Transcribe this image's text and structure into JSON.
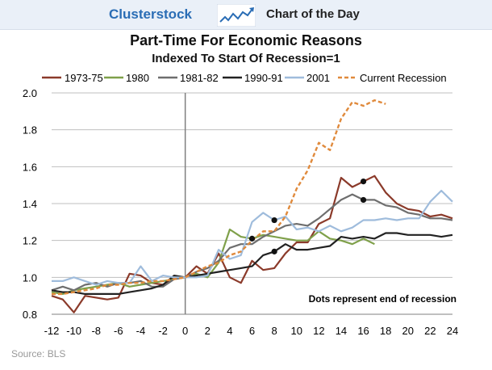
{
  "header": {
    "brand": "Clusterstock",
    "section": "Chart of the Day",
    "logo_icon": "rising-line-chart-icon"
  },
  "source": "Source: BLS",
  "colors": {
    "brand": "#2a6db5",
    "1973-75": "#8b3a2a",
    "1980": "#7fa04a",
    "1981-82": "#6e6e6e",
    "1990-91": "#222222",
    "2001": "#9fbcdc",
    "Current Recession": "#e08a3c"
  },
  "chart_data": {
    "type": "line",
    "title": "Part-Time For Economic Reasons",
    "subtitle": "Indexed To Start Of Recession=1",
    "xlabel": "",
    "ylabel": "",
    "xlim": [
      -12,
      24
    ],
    "ylim": [
      0.8,
      2.0
    ],
    "xticks": [
      "-12",
      "-10",
      "-8",
      "-6",
      "-4",
      "-2",
      "0",
      "2",
      "4",
      "6",
      "8",
      "10",
      "12",
      "14",
      "16",
      "18",
      "20",
      "22",
      "24"
    ],
    "yticks": [
      "0.8",
      "1.0",
      "1.2",
      "1.4",
      "1.6",
      "1.8",
      "2.0"
    ],
    "grid": "horizontal",
    "legend": "top",
    "vline_x": 0,
    "annotation": "Dots represent end of recession",
    "series": [
      {
        "name": "1973-75",
        "style": "solid",
        "x": [
          -12,
          -11,
          -10,
          -9,
          -8,
          -7,
          -6,
          -5,
          -4,
          -3,
          -2,
          -1,
          0,
          1,
          2,
          3,
          4,
          5,
          6,
          7,
          8,
          9,
          10,
          11,
          12,
          13,
          14,
          15,
          16,
          17,
          18,
          19,
          20,
          21,
          22,
          23,
          24
        ],
        "y": [
          0.9,
          0.88,
          0.81,
          0.9,
          0.89,
          0.88,
          0.89,
          1.02,
          1.01,
          0.97,
          0.96,
          1.0,
          1.0,
          1.06,
          1.02,
          1.13,
          1.0,
          0.97,
          1.09,
          1.04,
          1.05,
          1.13,
          1.19,
          1.19,
          1.29,
          1.32,
          1.54,
          1.49,
          1.52,
          1.55,
          1.46,
          1.4,
          1.37,
          1.36,
          1.33,
          1.34,
          1.32
        ],
        "end_x": 16
      },
      {
        "name": "1980",
        "style": "solid",
        "x": [
          -12,
          -11,
          -10,
          -9,
          -8,
          -7,
          -6,
          -5,
          -4,
          -3,
          -2,
          -1,
          0,
          1,
          2,
          3,
          4,
          5,
          6,
          7,
          8,
          9,
          10,
          11,
          12,
          13,
          14,
          15,
          16,
          17
        ],
        "y": [
          0.92,
          0.91,
          0.93,
          0.94,
          0.95,
          0.96,
          0.97,
          0.95,
          0.96,
          0.97,
          0.98,
          0.99,
          1.0,
          1.02,
          1.0,
          1.08,
          1.26,
          1.22,
          1.21,
          1.23,
          1.22,
          1.21,
          1.2,
          1.2,
          1.25,
          1.21,
          1.2,
          1.18,
          1.21,
          1.18
        ],
        "end_x": 6
      },
      {
        "name": "1981-82",
        "style": "solid",
        "x": [
          -12,
          -11,
          -10,
          -9,
          -8,
          -7,
          -6,
          -5,
          -4,
          -3,
          -2,
          -1,
          0,
          1,
          2,
          3,
          4,
          5,
          6,
          7,
          8,
          9,
          10,
          11,
          12,
          13,
          14,
          15,
          16,
          17,
          18,
          19,
          20,
          21,
          22,
          23,
          24
        ],
        "y": [
          0.93,
          0.95,
          0.93,
          0.96,
          0.97,
          0.95,
          0.97,
          0.97,
          0.98,
          0.95,
          0.95,
          0.99,
          1.0,
          1.03,
          1.05,
          1.09,
          1.16,
          1.18,
          1.18,
          1.22,
          1.25,
          1.28,
          1.29,
          1.28,
          1.32,
          1.37,
          1.42,
          1.45,
          1.42,
          1.42,
          1.39,
          1.38,
          1.35,
          1.34,
          1.32,
          1.32,
          1.31
        ],
        "end_x": 16
      },
      {
        "name": "1990-91",
        "style": "solid",
        "x": [
          -12,
          -11,
          -10,
          -9,
          -8,
          -7,
          -6,
          -5,
          -4,
          -3,
          -2,
          -1,
          0,
          1,
          2,
          3,
          4,
          5,
          6,
          7,
          8,
          9,
          10,
          11,
          12,
          13,
          14,
          15,
          16,
          17,
          18,
          19,
          20,
          21,
          22,
          23,
          24
        ],
        "y": [
          0.93,
          0.92,
          0.92,
          0.91,
          0.91,
          0.91,
          0.91,
          0.92,
          0.93,
          0.94,
          0.96,
          1.01,
          1.0,
          1.01,
          1.02,
          1.03,
          1.04,
          1.05,
          1.06,
          1.12,
          1.14,
          1.18,
          1.15,
          1.15,
          1.16,
          1.17,
          1.22,
          1.21,
          1.22,
          1.21,
          1.24,
          1.24,
          1.23,
          1.23,
          1.23,
          1.22,
          1.23
        ],
        "end_x": 8
      },
      {
        "name": "2001",
        "style": "solid",
        "x": [
          -12,
          -11,
          -10,
          -9,
          -8,
          -7,
          -6,
          -5,
          -4,
          -3,
          -2,
          -1,
          0,
          1,
          2,
          3,
          4,
          5,
          6,
          7,
          8,
          9,
          10,
          11,
          12,
          13,
          14,
          15,
          16,
          17,
          18,
          19,
          20,
          21,
          22,
          23,
          24
        ],
        "y": [
          0.98,
          0.98,
          1.0,
          0.98,
          0.96,
          0.98,
          0.97,
          0.97,
          1.06,
          0.98,
          1.01,
          1.0,
          1.0,
          1.0,
          1.01,
          1.15,
          1.1,
          1.12,
          1.3,
          1.35,
          1.31,
          1.33,
          1.26,
          1.27,
          1.25,
          1.28,
          1.25,
          1.27,
          1.31,
          1.31,
          1.32,
          1.31,
          1.32,
          1.32,
          1.41,
          1.47,
          1.41
        ],
        "end_x": 8
      },
      {
        "name": "Current Recession",
        "style": "dashed",
        "x": [
          -12,
          -11,
          -10,
          -9,
          -8,
          -7,
          -6,
          -5,
          -4,
          -3,
          -2,
          -1,
          0,
          1,
          2,
          3,
          4,
          5,
          6,
          7,
          8,
          9,
          10,
          11,
          12,
          13,
          14,
          15,
          16,
          17,
          18
        ],
        "y": [
          0.91,
          0.91,
          0.92,
          0.93,
          0.94,
          0.96,
          0.96,
          0.97,
          0.97,
          0.98,
          0.98,
          0.99,
          1.0,
          1.03,
          1.06,
          1.08,
          1.12,
          1.14,
          1.2,
          1.25,
          1.25,
          1.33,
          1.48,
          1.58,
          1.73,
          1.69,
          1.86,
          1.95,
          1.93,
          1.96,
          1.94
        ]
      }
    ]
  }
}
